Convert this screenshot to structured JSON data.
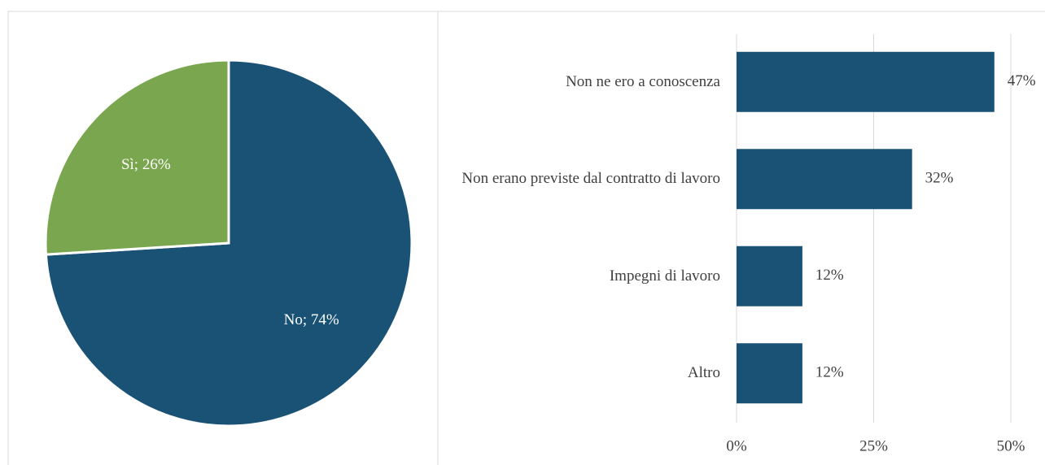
{
  "charts": [
    {
      "type": "pie",
      "categories": [
        "Sì",
        "No"
      ],
      "values": [
        26,
        74
      ],
      "value_labels": [
        "Sì; 26%",
        "No; 74%"
      ],
      "colors": [
        "#7aa64f",
        "#1a5276"
      ]
    },
    {
      "type": "hbar",
      "categories": [
        "Non ne ero a conoscenza",
        "Non erano previste dal contratto di lavoro",
        "Impegni di lavoro",
        "Altro"
      ],
      "values": [
        47,
        32,
        12,
        12
      ],
      "value_labels": [
        "47%",
        "32%",
        "12%",
        "12%"
      ],
      "color": "#1a5276",
      "xlim": [
        0,
        50
      ],
      "xticks": [
        {
          "value": 0,
          "label": "0%"
        },
        {
          "value": 25,
          "label": "25%"
        },
        {
          "value": 50,
          "label": "50%"
        }
      ],
      "grid": true
    }
  ]
}
